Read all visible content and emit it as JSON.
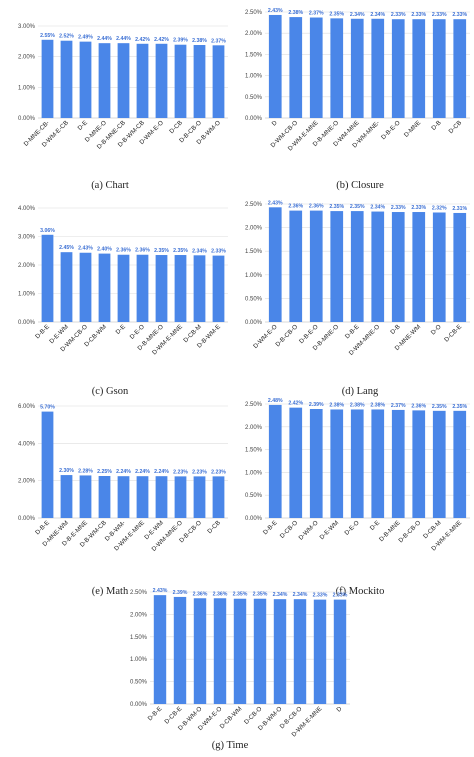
{
  "bar_color": "#4a86e8",
  "label_color": "#3b6fd4",
  "chart_data": [
    {
      "type": "bar",
      "caption": "(a) Chart",
      "categories": [
        "D-MNE-CB-",
        "D-WM-E-CB",
        "D-E",
        "D-MNE-O",
        "D-B-MNE-CB",
        "D-B-WM-CB",
        "D-WM-E-O",
        "D-CB",
        "D-B-CB-O",
        "D-B-WM-O"
      ],
      "values": [
        2.55,
        2.52,
        2.49,
        2.44,
        2.44,
        2.42,
        2.42,
        2.39,
        2.38,
        2.37
      ],
      "value_labels": [
        "2.55%",
        "2.52%",
        "2.49%",
        "2.44%",
        "2.44%",
        "2.42%",
        "2.42%",
        "2.39%",
        "2.38%",
        "2.37%"
      ],
      "ylim": [
        0,
        3
      ],
      "yticks": [
        "0.00%",
        "1.00%",
        "2.00%",
        "3.00%"
      ],
      "ytick_values": [
        0,
        1,
        2,
        3
      ],
      "grid": true
    },
    {
      "type": "bar",
      "caption": "(b) Closure",
      "categories": [
        "D",
        "D-WM-CB-O",
        "D-WM-E-MNE",
        "D-B-MNE-O",
        "D-WM-MNE",
        "D-WM-MNE-",
        "D-B-E-O",
        "D-MNE",
        "D-B",
        "D-CB"
      ],
      "values": [
        2.43,
        2.38,
        2.37,
        2.35,
        2.34,
        2.34,
        2.33,
        2.33,
        2.33,
        2.33
      ],
      "value_labels": [
        "2.43%",
        "2.38%",
        "2.37%",
        "2.35%",
        "2.34%",
        "2.34%",
        "2.33%",
        "2.33%",
        "2.33%",
        "2.33%"
      ],
      "ylim": [
        0,
        2.5
      ],
      "yticks": [
        "0.00%",
        "0.50%",
        "1.00%",
        "1.50%",
        "2.00%",
        "2.50%"
      ],
      "ytick_values": [
        0,
        0.5,
        1,
        1.5,
        2,
        2.5
      ],
      "grid": true
    },
    {
      "type": "bar",
      "caption": "(c) Gson",
      "categories": [
        "D-B-E",
        "D-E-WM",
        "D-WM-CB-O",
        "D-CB-WM",
        "D-E",
        "D-E-O",
        "D-B-MNE-O",
        "D-WM-E-MNE",
        "D-CB-M",
        "D-B-WM-E"
      ],
      "values": [
        3.06,
        2.45,
        2.43,
        2.4,
        2.36,
        2.36,
        2.35,
        2.35,
        2.34,
        2.33
      ],
      "value_labels": [
        "3.06%",
        "2.45%",
        "2.43%",
        "2.40%",
        "2.36%",
        "2.36%",
        "2.35%",
        "2.35%",
        "2.34%",
        "2.33%"
      ],
      "ylim": [
        0,
        4
      ],
      "yticks": [
        "0.00%",
        "1.00%",
        "2.00%",
        "3.00%",
        "4.00%"
      ],
      "ytick_values": [
        0,
        1,
        2,
        3,
        4
      ],
      "grid": true
    },
    {
      "type": "bar",
      "caption": "(d) Lang",
      "categories": [
        "D-WM-E-O",
        "D-B-CB-O",
        "D-B-E-O",
        "D-B-MNE-O",
        "D-B-E",
        "D-WM-MNE-O",
        "D-B",
        "D-MNE-WM",
        "D-O",
        "D-CB-E"
      ],
      "values": [
        2.43,
        2.36,
        2.36,
        2.35,
        2.35,
        2.34,
        2.33,
        2.33,
        2.32,
        2.31
      ],
      "value_labels": [
        "2.43%",
        "2.36%",
        "2.36%",
        "2.35%",
        "2.35%",
        "2.34%",
        "2.33%",
        "2.33%",
        "2.32%",
        "2.31%"
      ],
      "ylim": [
        0,
        2.5
      ],
      "yticks": [
        "0.00%",
        "0.50%",
        "1.00%",
        "1.50%",
        "2.00%",
        "2.50%"
      ],
      "ytick_values": [
        0,
        0.5,
        1,
        1.5,
        2,
        2.5
      ],
      "grid": true
    },
    {
      "type": "bar",
      "caption": "(e) Math",
      "categories": [
        "D-B-E",
        "D-MNE-WM",
        "D-B-E-MNE",
        "D-B-WM-CB",
        "D-B-WM-",
        "D-WM-E-MNE",
        "D-E-WM",
        "D-WM-MNE-O",
        "D-B-CB-O",
        "D-CB"
      ],
      "values": [
        5.7,
        2.3,
        2.28,
        2.25,
        2.24,
        2.24,
        2.24,
        2.23,
        2.23,
        2.23
      ],
      "value_labels": [
        "5.70%",
        "2.30%",
        "2.28%",
        "2.25%",
        "2.24%",
        "2.24%",
        "2.24%",
        "2.23%",
        "2.23%",
        "2.23%"
      ],
      "ylim": [
        0,
        6
      ],
      "yticks": [
        "0.00%",
        "2.00%",
        "4.00%",
        "6.00%"
      ],
      "ytick_values": [
        0,
        2,
        4,
        6
      ],
      "grid": true
    },
    {
      "type": "bar",
      "caption": "(f) Mockito",
      "categories": [
        "D-B-E",
        "D-CB-O",
        "D-WM-O",
        "D-E-WM",
        "D-E-O",
        "D-E",
        "D-B-MNE",
        "D-B-CB-O",
        "D-CB-M",
        "D-WM-E-MNE"
      ],
      "values": [
        2.48,
        2.42,
        2.39,
        2.38,
        2.38,
        2.38,
        2.37,
        2.36,
        2.35,
        2.35
      ],
      "value_labels": [
        "2.48%",
        "2.42%",
        "2.39%",
        "2.38%",
        "2.38%",
        "2.38%",
        "2.37%",
        "2.36%",
        "2.35%",
        "2.35%"
      ],
      "ylim": [
        0,
        2.5
      ],
      "yticks": [
        "0.00%",
        "0.50%",
        "1.00%",
        "1.50%",
        "2.00%",
        "2.50%"
      ],
      "ytick_values": [
        0,
        0.5,
        1,
        1.5,
        2,
        2.5
      ],
      "grid": true
    },
    {
      "type": "bar",
      "caption": "(g) Time",
      "categories": [
        "D-B-E",
        "D-CB-E",
        "D-B-WM-O",
        "D-WM-E-O",
        "D-CB-WM",
        "D-CB-O",
        "D-B-WM-O",
        "D-B-CB-O",
        "D-WM-E-MNE",
        "D"
      ],
      "values": [
        2.43,
        2.39,
        2.36,
        2.36,
        2.35,
        2.35,
        2.34,
        2.34,
        2.33,
        2.33
      ],
      "value_labels": [
        "2.43%",
        "2.39%",
        "2.36%",
        "2.36%",
        "2.35%",
        "2.35%",
        "2.34%",
        "2.34%",
        "2.33%",
        "2.33%"
      ],
      "ylim": [
        0,
        2.5
      ],
      "yticks": [
        "0.00%",
        "0.50%",
        "1.00%",
        "1.50%",
        "2.00%",
        "2.50%"
      ],
      "ytick_values": [
        0,
        0.5,
        1,
        1.5,
        2,
        2.5
      ],
      "grid": true
    }
  ]
}
